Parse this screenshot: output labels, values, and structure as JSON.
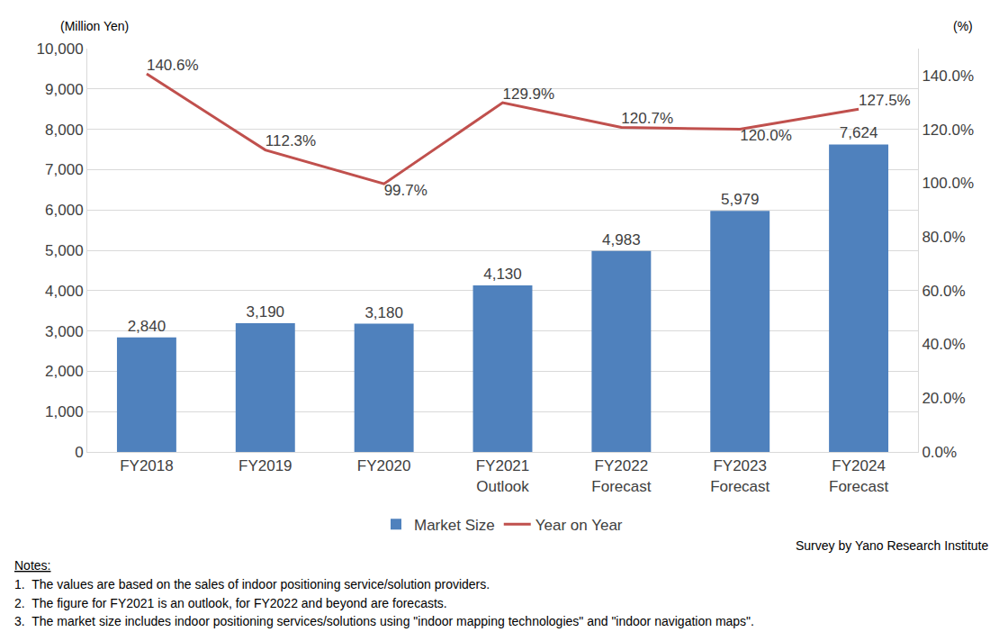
{
  "chart_data": {
    "type": "bar",
    "y_label": "(Million Yen)",
    "y2_label": "(%)",
    "categories": [
      "FY2018",
      "FY2019",
      "FY2020",
      "FY2021\nOutlook",
      "FY2022\nForecast",
      "FY2023\nForecast",
      "FY2024\nForecast"
    ],
    "series": [
      {
        "name": "Market Size",
        "type": "bar",
        "color": "#4f81bd",
        "values": [
          2840,
          3190,
          3180,
          4130,
          4983,
          5979,
          7624
        ],
        "value_labels": [
          "2,840",
          "3,190",
          "3,180",
          "4,130",
          "4,983",
          "5,979",
          "7,624"
        ]
      },
      {
        "name": "Year on Year",
        "type": "line",
        "color": "#c0504d",
        "axis": "y2",
        "values": [
          140.6,
          112.3,
          99.7,
          129.9,
          120.7,
          120.0,
          127.5
        ],
        "value_labels": [
          "140.6%",
          "112.3%",
          "99.7%",
          "129.9%",
          "120.7%",
          "120.0%",
          "127.5%"
        ]
      }
    ],
    "ylim": [
      0,
      10000
    ],
    "yticks": [
      0,
      {
        "value": 1000,
        "label": "1,000"
      },
      {
        "value": 2000,
        "label": "2,000"
      },
      {
        "value": 3000,
        "label": "3,000"
      },
      {
        "value": 4000,
        "label": "4,000"
      },
      {
        "value": 5000,
        "label": "5,000"
      },
      {
        "value": 6000,
        "label": "6,000"
      },
      {
        "value": 7000,
        "label": "7,000"
      },
      {
        "value": 8000,
        "label": "8,000"
      },
      {
        "value": 9000,
        "label": "9,000"
      },
      {
        "value": 10000,
        "label": "10,000"
      }
    ],
    "y2lim": [
      0,
      150
    ],
    "y2ticks": [
      {
        "value": 0,
        "label": "0.0%"
      },
      {
        "value": 20,
        "label": "20.0%"
      },
      {
        "value": 40,
        "label": "40.0%"
      },
      {
        "value": 60,
        "label": "60.0%"
      },
      {
        "value": 80,
        "label": "80.0%"
      },
      {
        "value": 100,
        "label": "100.0%"
      },
      {
        "value": 120,
        "label": "120.0%"
      },
      {
        "value": 140,
        "label": "140.0%"
      }
    ],
    "grid": true,
    "legend": "bottom",
    "data_labels": true,
    "source": "Survey by Yano Research Institute",
    "notes_title": "Notes:",
    "notes": [
      "1.  The values are based on the sales of indoor positioning service/solution providers.",
      "2.  The figure for FY2021 is an outlook, for FY2022 and beyond are forecasts.",
      "3.  The market size includes indoor positioning services/solutions using \"indoor mapping technologies\" and \"indoor navigation maps\"."
    ]
  }
}
